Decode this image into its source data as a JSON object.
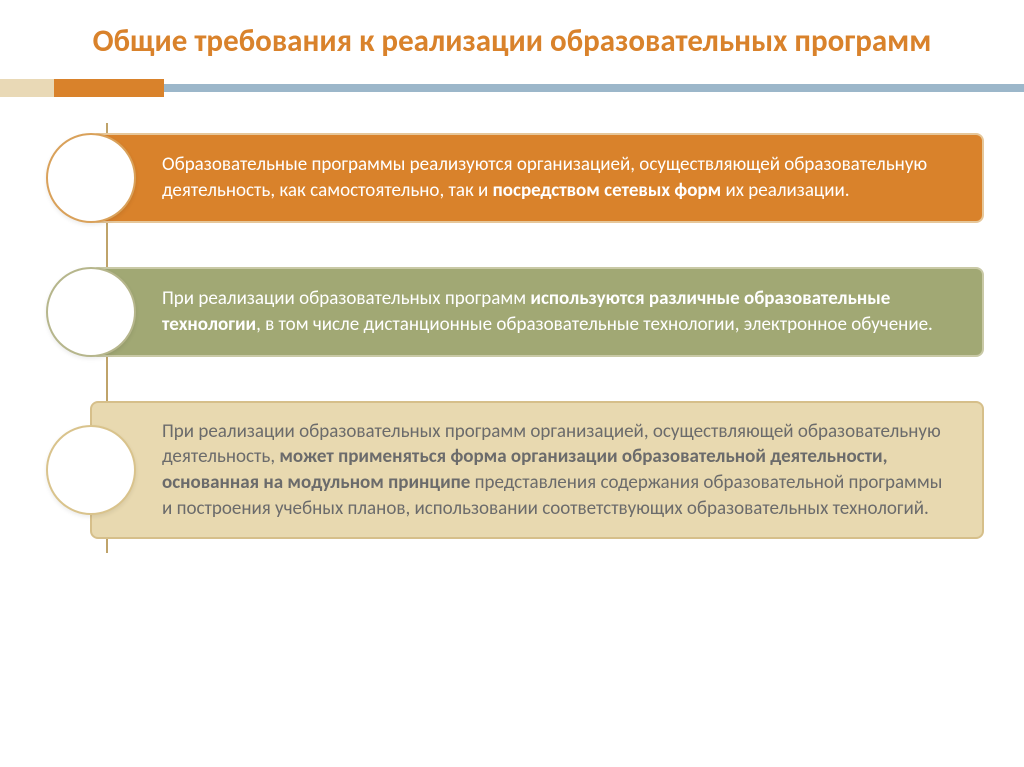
{
  "title": {
    "text": "Общие требования к реализации образовательных программ",
    "color": "#d9822b",
    "fontsize": 31
  },
  "accent_bar": {
    "segment1": {
      "color": "#e9d9b6",
      "width": 54
    },
    "segment2": {
      "color": "#d9822b",
      "width": 110
    },
    "thin": {
      "color": "#9cb7ca"
    }
  },
  "diagram": {
    "connector_color": "#bfa36a",
    "connector_height": 430,
    "item_fontsize": 19,
    "items": [
      {
        "circle_border": "#d9a15a",
        "box_bg": "#d9822b",
        "box_border": "#e6c79a",
        "text_color": "#ffffff",
        "html": "Образовательные программы реализуются организацией, осуществляющей образовательную деятельность, как самостоятельно, так и <b>посредством сетевых форм</b> их реализации."
      },
      {
        "circle_border": "#b6b68c",
        "box_bg": "#a1a874",
        "box_border": "#c9c9a6",
        "text_color": "#ffffff",
        "html": "При реализации образовательных программ <b>используются различные образовательные технологии</b>, в том числе дистанционные образовательные технологии, электронное обучение."
      },
      {
        "circle_border": "#d9c38c",
        "box_bg": "#e8d9b0",
        "box_border": "#d6bf8a",
        "text_color": "#6b6b6b",
        "html": "При реализации образовательных программ организацией, осуществляющей образовательную деятельность, <b>может применяться форма организации образовательной деятельности, основанная на модульном принципе</b> представления содержания образовательной программы и построения учебных планов, использовании соответствующих образовательных технологий."
      }
    ]
  }
}
